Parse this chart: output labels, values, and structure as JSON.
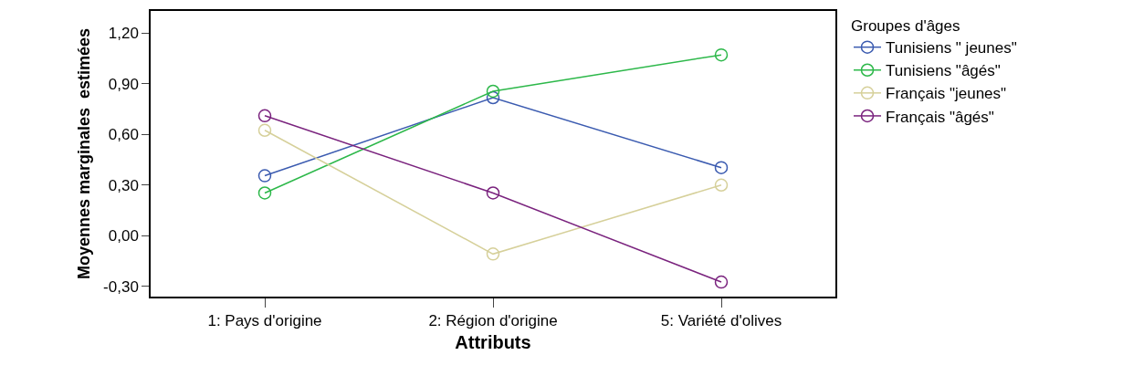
{
  "chart_data": {
    "type": "line",
    "xlabel": "Attributs",
    "ylabel": "Moyennes marginales  estimées",
    "legend_title": "Groupes d'âges",
    "categories": [
      "1: Pays d'origine",
      "2: Région d'origine",
      "5: Variété d'olives"
    ],
    "series": [
      {
        "name": "Tunisiens \" jeunes\"",
        "color": "#3b5bb0",
        "values": [
          0.355,
          0.817,
          0.403
        ]
      },
      {
        "name": "Tunisiens \"âgés\"",
        "color": "#2db84a",
        "values": [
          0.253,
          0.855,
          1.07
        ]
      },
      {
        "name": "Français \"jeunes\"",
        "color": "#d6d09a",
        "values": [
          0.624,
          -0.108,
          0.3
        ]
      },
      {
        "name": "Français \"âgés\"",
        "color": "#7a237e",
        "values": [
          0.71,
          0.253,
          -0.274
        ]
      }
    ],
    "ylim": [
      -0.36,
      1.33
    ],
    "yticks": [
      {
        "value": -0.3,
        "label": "-0,30"
      },
      {
        "value": 0,
        "label": "0,00"
      },
      {
        "value": 0.3,
        "label": "0,30"
      },
      {
        "value": 0.6,
        "label": "0,60"
      },
      {
        "value": 0.9,
        "label": "0,90"
      },
      {
        "value": 1.2,
        "label": "1,20"
      }
    ],
    "marker": "circle",
    "line_style": "solid",
    "legend": "right"
  }
}
